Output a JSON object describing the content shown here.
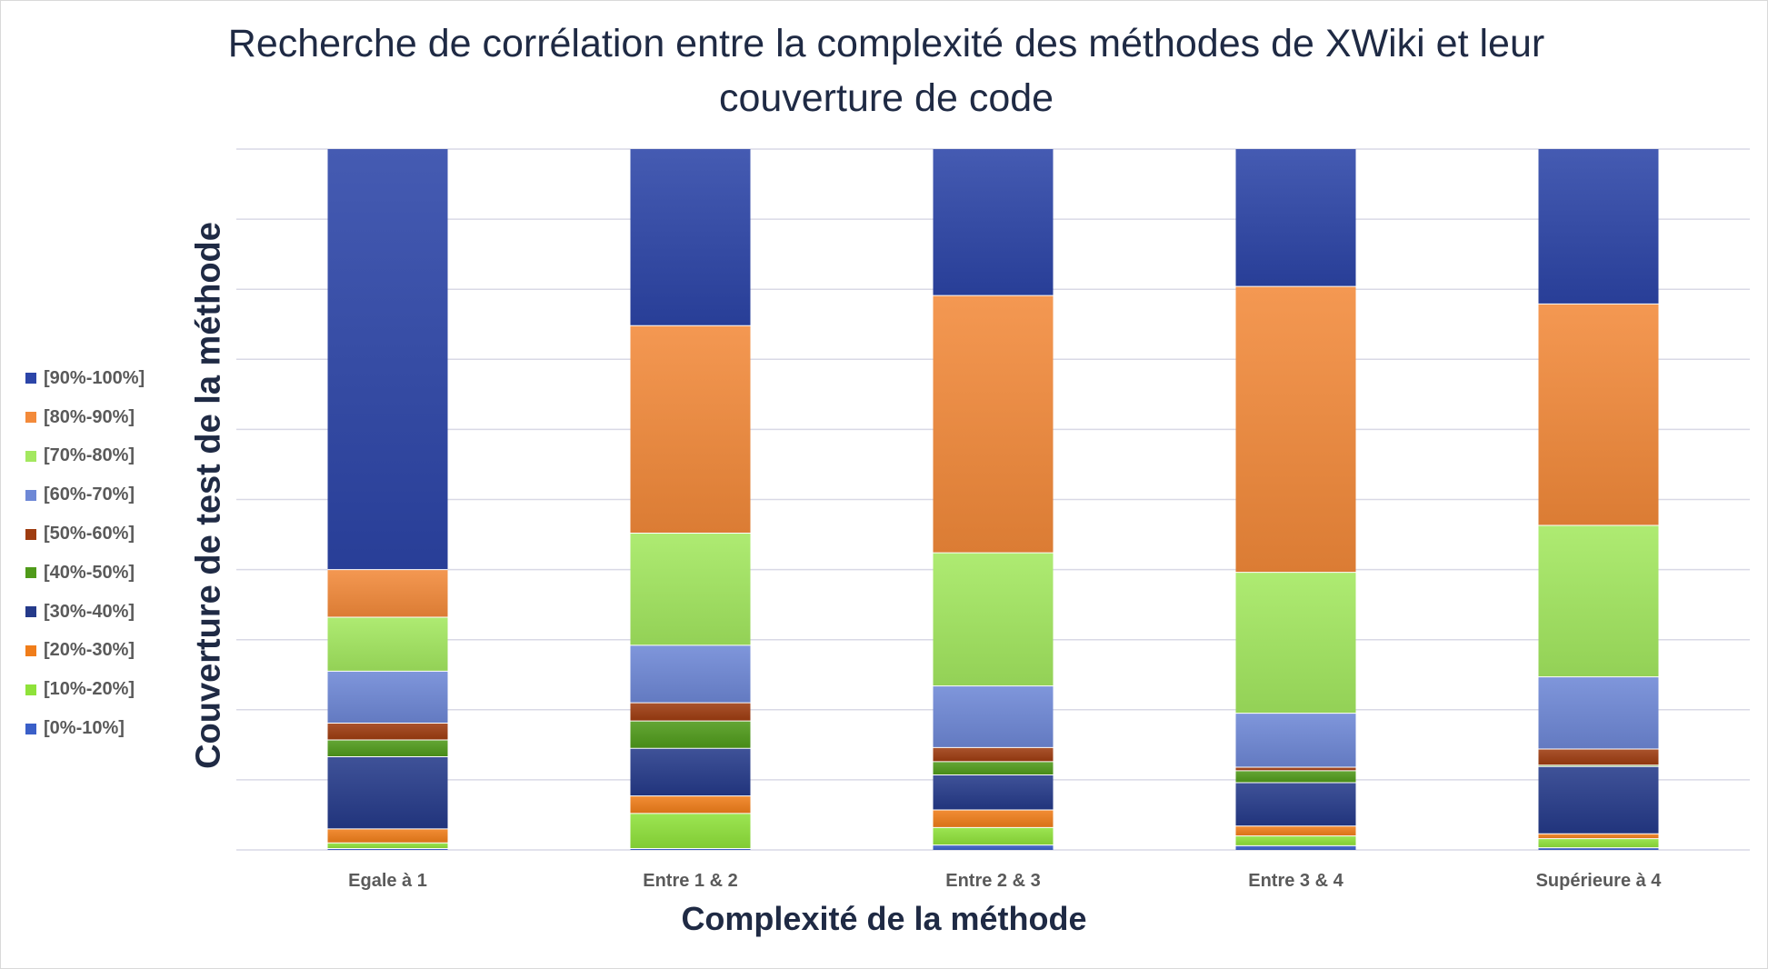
{
  "chart_data": {
    "type": "bar",
    "stacked": true,
    "title": "Recherche de corrélation entre la complexité des méthodes de XWiki et leur couverture de code",
    "xlabel": "Complexité de la méthode",
    "ylabel": "Couverture de test de la méthode",
    "ylim": [
      0,
      100
    ],
    "grid": true,
    "legend_position": "left",
    "categories": [
      "Egale à 1",
      "Entre 1 & 2",
      "Entre 2 & 3",
      "Entre 3 & 4",
      "Supérieure à 4"
    ],
    "series": [
      {
        "name": "[0%-10%]",
        "color": "#3a5fc8",
        "values": [
          0.2,
          0.2,
          0.7,
          0.6,
          0.3
        ]
      },
      {
        "name": "[10%-20%]",
        "color": "#8fe23a",
        "values": [
          0.8,
          5.0,
          2.5,
          1.4,
          1.3
        ]
      },
      {
        "name": "[20%-30%]",
        "color": "#f07d1a",
        "values": [
          2.0,
          2.5,
          2.5,
          1.4,
          0.7
        ]
      },
      {
        "name": "[30%-40%]",
        "color": "#253a8a",
        "values": [
          10.3,
          6.8,
          5.0,
          6.2,
          9.6
        ]
      },
      {
        "name": "[40%-50%]",
        "color": "#4f9a1a",
        "values": [
          2.4,
          3.9,
          1.9,
          1.7,
          0.2
        ]
      },
      {
        "name": "[50%-60%]",
        "color": "#9e3c10",
        "values": [
          2.4,
          2.6,
          2.0,
          0.5,
          2.3
        ]
      },
      {
        "name": "[60%-70%]",
        "color": "#6e88d6",
        "values": [
          7.4,
          8.2,
          8.8,
          7.7,
          10.3
        ]
      },
      {
        "name": "[70%-80%]",
        "color": "#a3e85f",
        "values": [
          7.7,
          16.0,
          19.0,
          20.1,
          21.6
        ]
      },
      {
        "name": "[80%-90%]",
        "color": "#f38a3a",
        "values": [
          6.8,
          29.6,
          36.7,
          40.8,
          31.6
        ]
      },
      {
        "name": "[90%-100%]",
        "color": "#2c45a8",
        "values": [
          60.0,
          25.2,
          20.9,
          19.6,
          22.1
        ]
      }
    ]
  }
}
